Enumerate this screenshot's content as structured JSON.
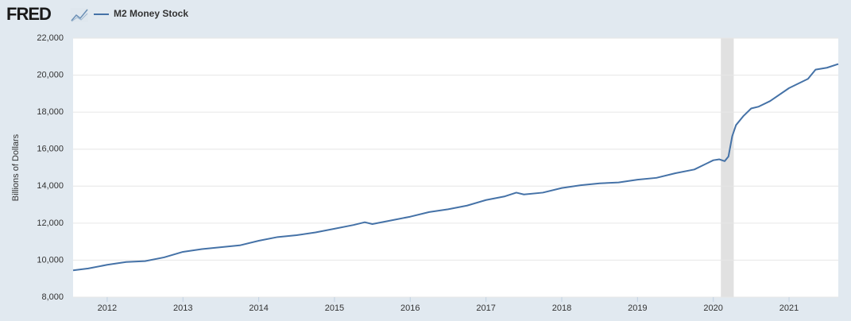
{
  "logo": "FRED",
  "chart_data": {
    "type": "line",
    "y_label": "Billions of Dollars",
    "x": [
      2011.55,
      2011.75,
      2012.0,
      2012.25,
      2012.5,
      2012.75,
      2013.0,
      2013.25,
      2013.5,
      2013.75,
      2014.0,
      2014.25,
      2014.5,
      2014.75,
      2015.0,
      2015.25,
      2015.4,
      2015.5,
      2015.75,
      2016.0,
      2016.25,
      2016.5,
      2016.75,
      2017.0,
      2017.25,
      2017.4,
      2017.5,
      2017.75,
      2018.0,
      2018.25,
      2018.5,
      2018.75,
      2019.0,
      2019.25,
      2019.5,
      2019.75,
      2020.0,
      2020.08,
      2020.15,
      2020.2,
      2020.25,
      2020.3,
      2020.4,
      2020.5,
      2020.6,
      2020.75,
      2021.0,
      2021.25,
      2021.35,
      2021.5,
      2021.65
    ],
    "series": [
      {
        "name": "M2 Money Stock",
        "color": "#4572a7",
        "values": [
          9450,
          9550,
          9750,
          9900,
          9950,
          10150,
          10450,
          10600,
          10700,
          10800,
          11050,
          11250,
          11350,
          11500,
          11700,
          11900,
          12050,
          11950,
          12150,
          12350,
          12600,
          12750,
          12950,
          13250,
          13450,
          13650,
          13550,
          13650,
          13900,
          14050,
          14150,
          14200,
          14350,
          14450,
          14700,
          14900,
          15400,
          15450,
          15350,
          15600,
          16700,
          17300,
          17800,
          18200,
          18300,
          18600,
          19300,
          19800,
          20300,
          20400,
          20600
        ]
      }
    ],
    "recession": [
      2020.1,
      2020.27
    ],
    "xlim": [
      2011.55,
      2021.65
    ],
    "xticks": [
      2012,
      2013,
      2014,
      2015,
      2016,
      2017,
      2018,
      2019,
      2020,
      2021
    ],
    "ylim": [
      8000,
      22000
    ],
    "yticks": [
      {
        "value": 8000,
        "label": "8,000"
      },
      {
        "value": 10000,
        "label": "10,000"
      },
      {
        "value": 12000,
        "label": "12,000"
      },
      {
        "value": 14000,
        "label": "14,000"
      },
      {
        "value": 16000,
        "label": "16,000"
      },
      {
        "value": 18000,
        "label": "18,000"
      },
      {
        "value": 20000,
        "label": "20,000"
      },
      {
        "value": 22000,
        "label": "22,000"
      }
    ],
    "grid": true
  }
}
